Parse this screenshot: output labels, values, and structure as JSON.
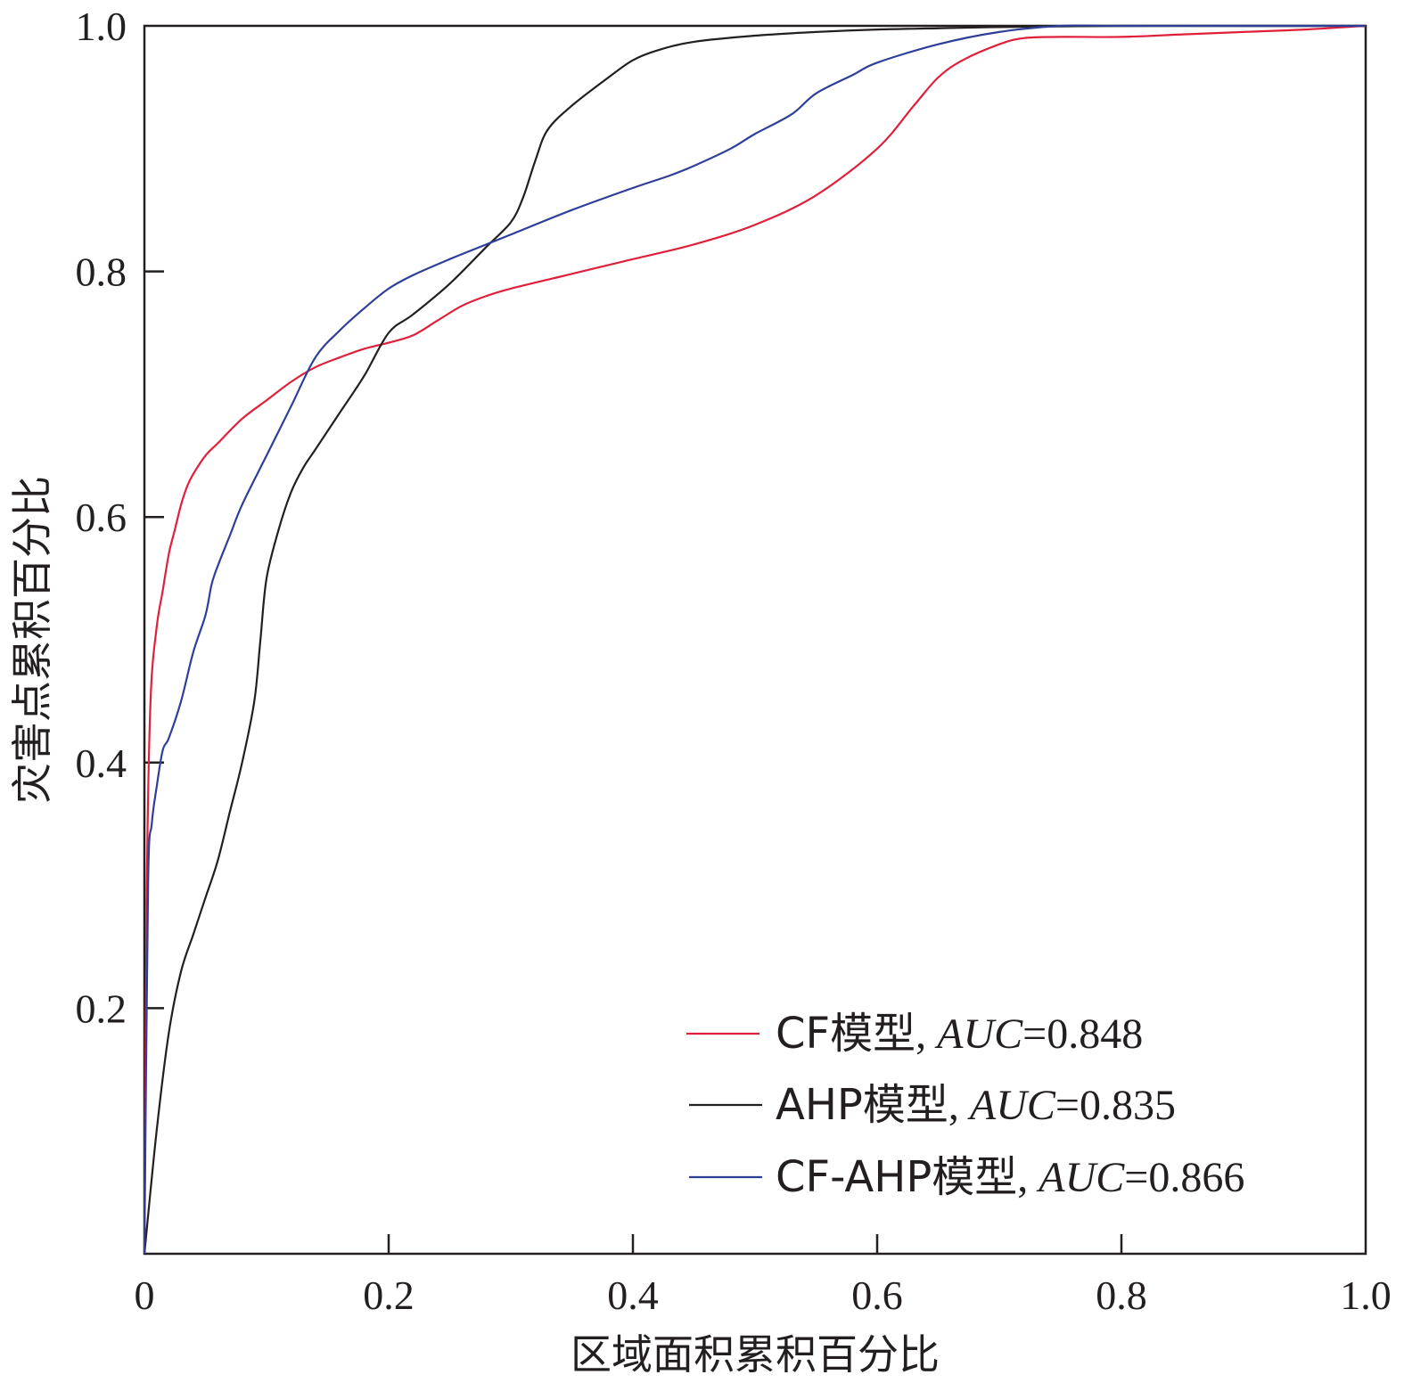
{
  "chart_data": {
    "type": "line",
    "title": "",
    "xlabel": "区域面积累积百分比",
    "ylabel": "灾害点累积百分比",
    "xlim": [
      0,
      1.0
    ],
    "ylim": [
      0,
      1.0
    ],
    "x_ticks": [
      "0",
      "0.2",
      "0.4",
      "0.6",
      "0.8",
      "1.0"
    ],
    "y_ticks": [
      "0.2",
      "0.4",
      "0.6",
      "0.8",
      "1.0"
    ],
    "grid": false,
    "legend_position": "bottom-right",
    "series": [
      {
        "name": "CF模型, AUC=0.848",
        "name_model": "CF模型",
        "name_metric_label": "AUC",
        "name_metric_value": "=0.848",
        "color": "#e0203a",
        "x": [
          0,
          0.002,
          0.005,
          0.01,
          0.015,
          0.02,
          0.025,
          0.03,
          0.035,
          0.04,
          0.05,
          0.06,
          0.08,
          0.1,
          0.12,
          0.14,
          0.16,
          0.18,
          0.2,
          0.22,
          0.24,
          0.26,
          0.28,
          0.3,
          0.35,
          0.4,
          0.45,
          0.5,
          0.55,
          0.6,
          0.63,
          0.65,
          0.67,
          0.7,
          0.72,
          0.75,
          0.8,
          0.85,
          0.9,
          0.95,
          1.0
        ],
        "y": [
          0,
          0.3,
          0.45,
          0.51,
          0.54,
          0.57,
          0.59,
          0.61,
          0.625,
          0.635,
          0.65,
          0.66,
          0.68,
          0.695,
          0.71,
          0.722,
          0.73,
          0.737,
          0.742,
          0.748,
          0.76,
          0.772,
          0.78,
          0.786,
          0.798,
          0.81,
          0.822,
          0.838,
          0.862,
          0.9,
          0.935,
          0.958,
          0.972,
          0.985,
          0.99,
          0.991,
          0.991,
          0.993,
          0.995,
          0.997,
          1.0
        ]
      },
      {
        "name": "AHP模型, AUC=0.835",
        "name_model": "AHP模型",
        "name_metric_label": "AUC",
        "name_metric_value": "=0.835",
        "color": "#231f20",
        "x": [
          0,
          0.01,
          0.02,
          0.03,
          0.04,
          0.05,
          0.06,
          0.07,
          0.08,
          0.09,
          0.095,
          0.1,
          0.11,
          0.12,
          0.13,
          0.14,
          0.16,
          0.18,
          0.2,
          0.22,
          0.25,
          0.28,
          0.3,
          0.31,
          0.32,
          0.33,
          0.35,
          0.38,
          0.4,
          0.42,
          0.45,
          0.5,
          0.55,
          0.6,
          0.65,
          0.7,
          0.8,
          0.9,
          1.0
        ],
        "y": [
          0,
          0.1,
          0.18,
          0.23,
          0.26,
          0.29,
          0.32,
          0.36,
          0.4,
          0.45,
          0.5,
          0.55,
          0.59,
          0.62,
          0.64,
          0.655,
          0.685,
          0.715,
          0.75,
          0.765,
          0.79,
          0.82,
          0.84,
          0.86,
          0.89,
          0.915,
          0.935,
          0.958,
          0.972,
          0.98,
          0.987,
          0.992,
          0.995,
          0.997,
          0.998,
          0.999,
          1.0,
          1.0,
          1.0
        ]
      },
      {
        "name": "CF-AHP模型, AUC=0.866",
        "name_model": "CF-AHP模型",
        "name_metric_label": "AUC",
        "name_metric_value": "=0.866",
        "color": "#2e3f9a",
        "x": [
          0,
          0.003,
          0.006,
          0.01,
          0.015,
          0.02,
          0.03,
          0.04,
          0.05,
          0.055,
          0.06,
          0.07,
          0.08,
          0.1,
          0.12,
          0.14,
          0.16,
          0.18,
          0.2,
          0.22,
          0.25,
          0.28,
          0.3,
          0.35,
          0.4,
          0.43,
          0.45,
          0.48,
          0.5,
          0.53,
          0.55,
          0.58,
          0.6,
          0.65,
          0.7,
          0.75,
          0.8,
          0.9,
          1.0
        ],
        "y": [
          0,
          0.3,
          0.35,
          0.38,
          0.41,
          0.42,
          0.45,
          0.49,
          0.52,
          0.545,
          0.56,
          0.585,
          0.61,
          0.65,
          0.69,
          0.73,
          0.752,
          0.77,
          0.786,
          0.797,
          0.81,
          0.822,
          0.83,
          0.85,
          0.868,
          0.878,
          0.886,
          0.9,
          0.912,
          0.928,
          0.945,
          0.96,
          0.97,
          0.985,
          0.995,
          1.0,
          1.0,
          1.0,
          1.0
        ]
      }
    ]
  }
}
